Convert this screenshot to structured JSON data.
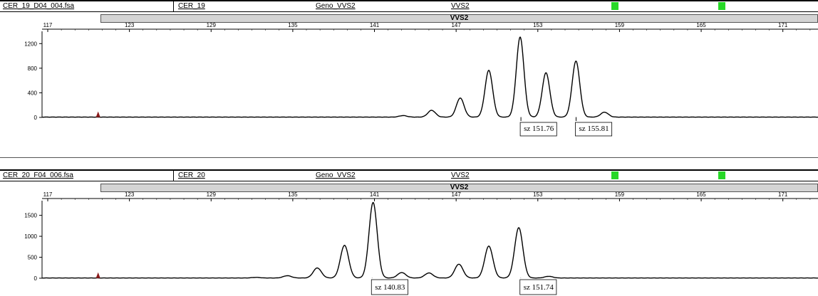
{
  "colors": {
    "trace": "#000000",
    "marker": "#27d827",
    "binbar": "#d4d4d4",
    "size_marker": "#8b1a1a"
  },
  "panels": [
    {
      "filename": "CER_19_D04_004.fsa",
      "sample": "CER_19",
      "geno": "Geno_VVS2",
      "marker": "VVS2",
      "bin_label": "VVS2"
    },
    {
      "filename": "CER_20_F04_006.fsa",
      "sample": "CER_20",
      "geno": "Geno_VVS2",
      "marker": "VVS2",
      "bin_label": "VVS2"
    }
  ],
  "chart_data": [
    {
      "type": "line",
      "x_ticks": [
        "117",
        "123",
        "129",
        "135",
        "141",
        "147",
        "153",
        "159",
        "165",
        "171"
      ],
      "y_ticks": [
        "0",
        "400",
        "800",
        "1200"
      ],
      "xlim": [
        117,
        174
      ],
      "ylim": [
        0,
        1400
      ],
      "baseline": 5,
      "size_marker_at": 120.7,
      "series": [
        {
          "peaks": [
            {
              "x": 143.1,
              "y": 25
            },
            {
              "x": 145.2,
              "y": 110
            },
            {
              "x": 147.3,
              "y": 310
            },
            {
              "x": 149.4,
              "y": 760
            },
            {
              "x": 151.7,
              "y": 1300
            },
            {
              "x": 153.6,
              "y": 720
            },
            {
              "x": 155.8,
              "y": 910
            },
            {
              "x": 157.9,
              "y": 80
            }
          ]
        }
      ],
      "annotations": [
        {
          "text": "sz 151.76",
          "x": 151.76
        },
        {
          "text": "sz 155.81",
          "x": 155.81
        }
      ]
    },
    {
      "type": "line",
      "x_ticks": [
        "117",
        "123",
        "129",
        "135",
        "141",
        "147",
        "153",
        "159",
        "165",
        "171"
      ],
      "y_ticks": [
        "0",
        "500",
        "1000",
        "1500"
      ],
      "xlim": [
        117,
        174
      ],
      "ylim": [
        0,
        1850
      ],
      "baseline": 5,
      "size_marker_at": 120.7,
      "series": [
        {
          "peaks": [
            {
              "x": 132.3,
              "y": 15
            },
            {
              "x": 134.6,
              "y": 55
            },
            {
              "x": 136.8,
              "y": 240
            },
            {
              "x": 138.8,
              "y": 780
            },
            {
              "x": 140.9,
              "y": 1800
            },
            {
              "x": 143.0,
              "y": 130
            },
            {
              "x": 145.0,
              "y": 120
            },
            {
              "x": 147.2,
              "y": 330
            },
            {
              "x": 149.4,
              "y": 760
            },
            {
              "x": 151.6,
              "y": 1200
            },
            {
              "x": 153.8,
              "y": 40
            }
          ]
        }
      ],
      "annotations": [
        {
          "text": "sz 140.83",
          "x": 140.83
        },
        {
          "text": "sz 151.74",
          "x": 151.74
        }
      ]
    }
  ]
}
